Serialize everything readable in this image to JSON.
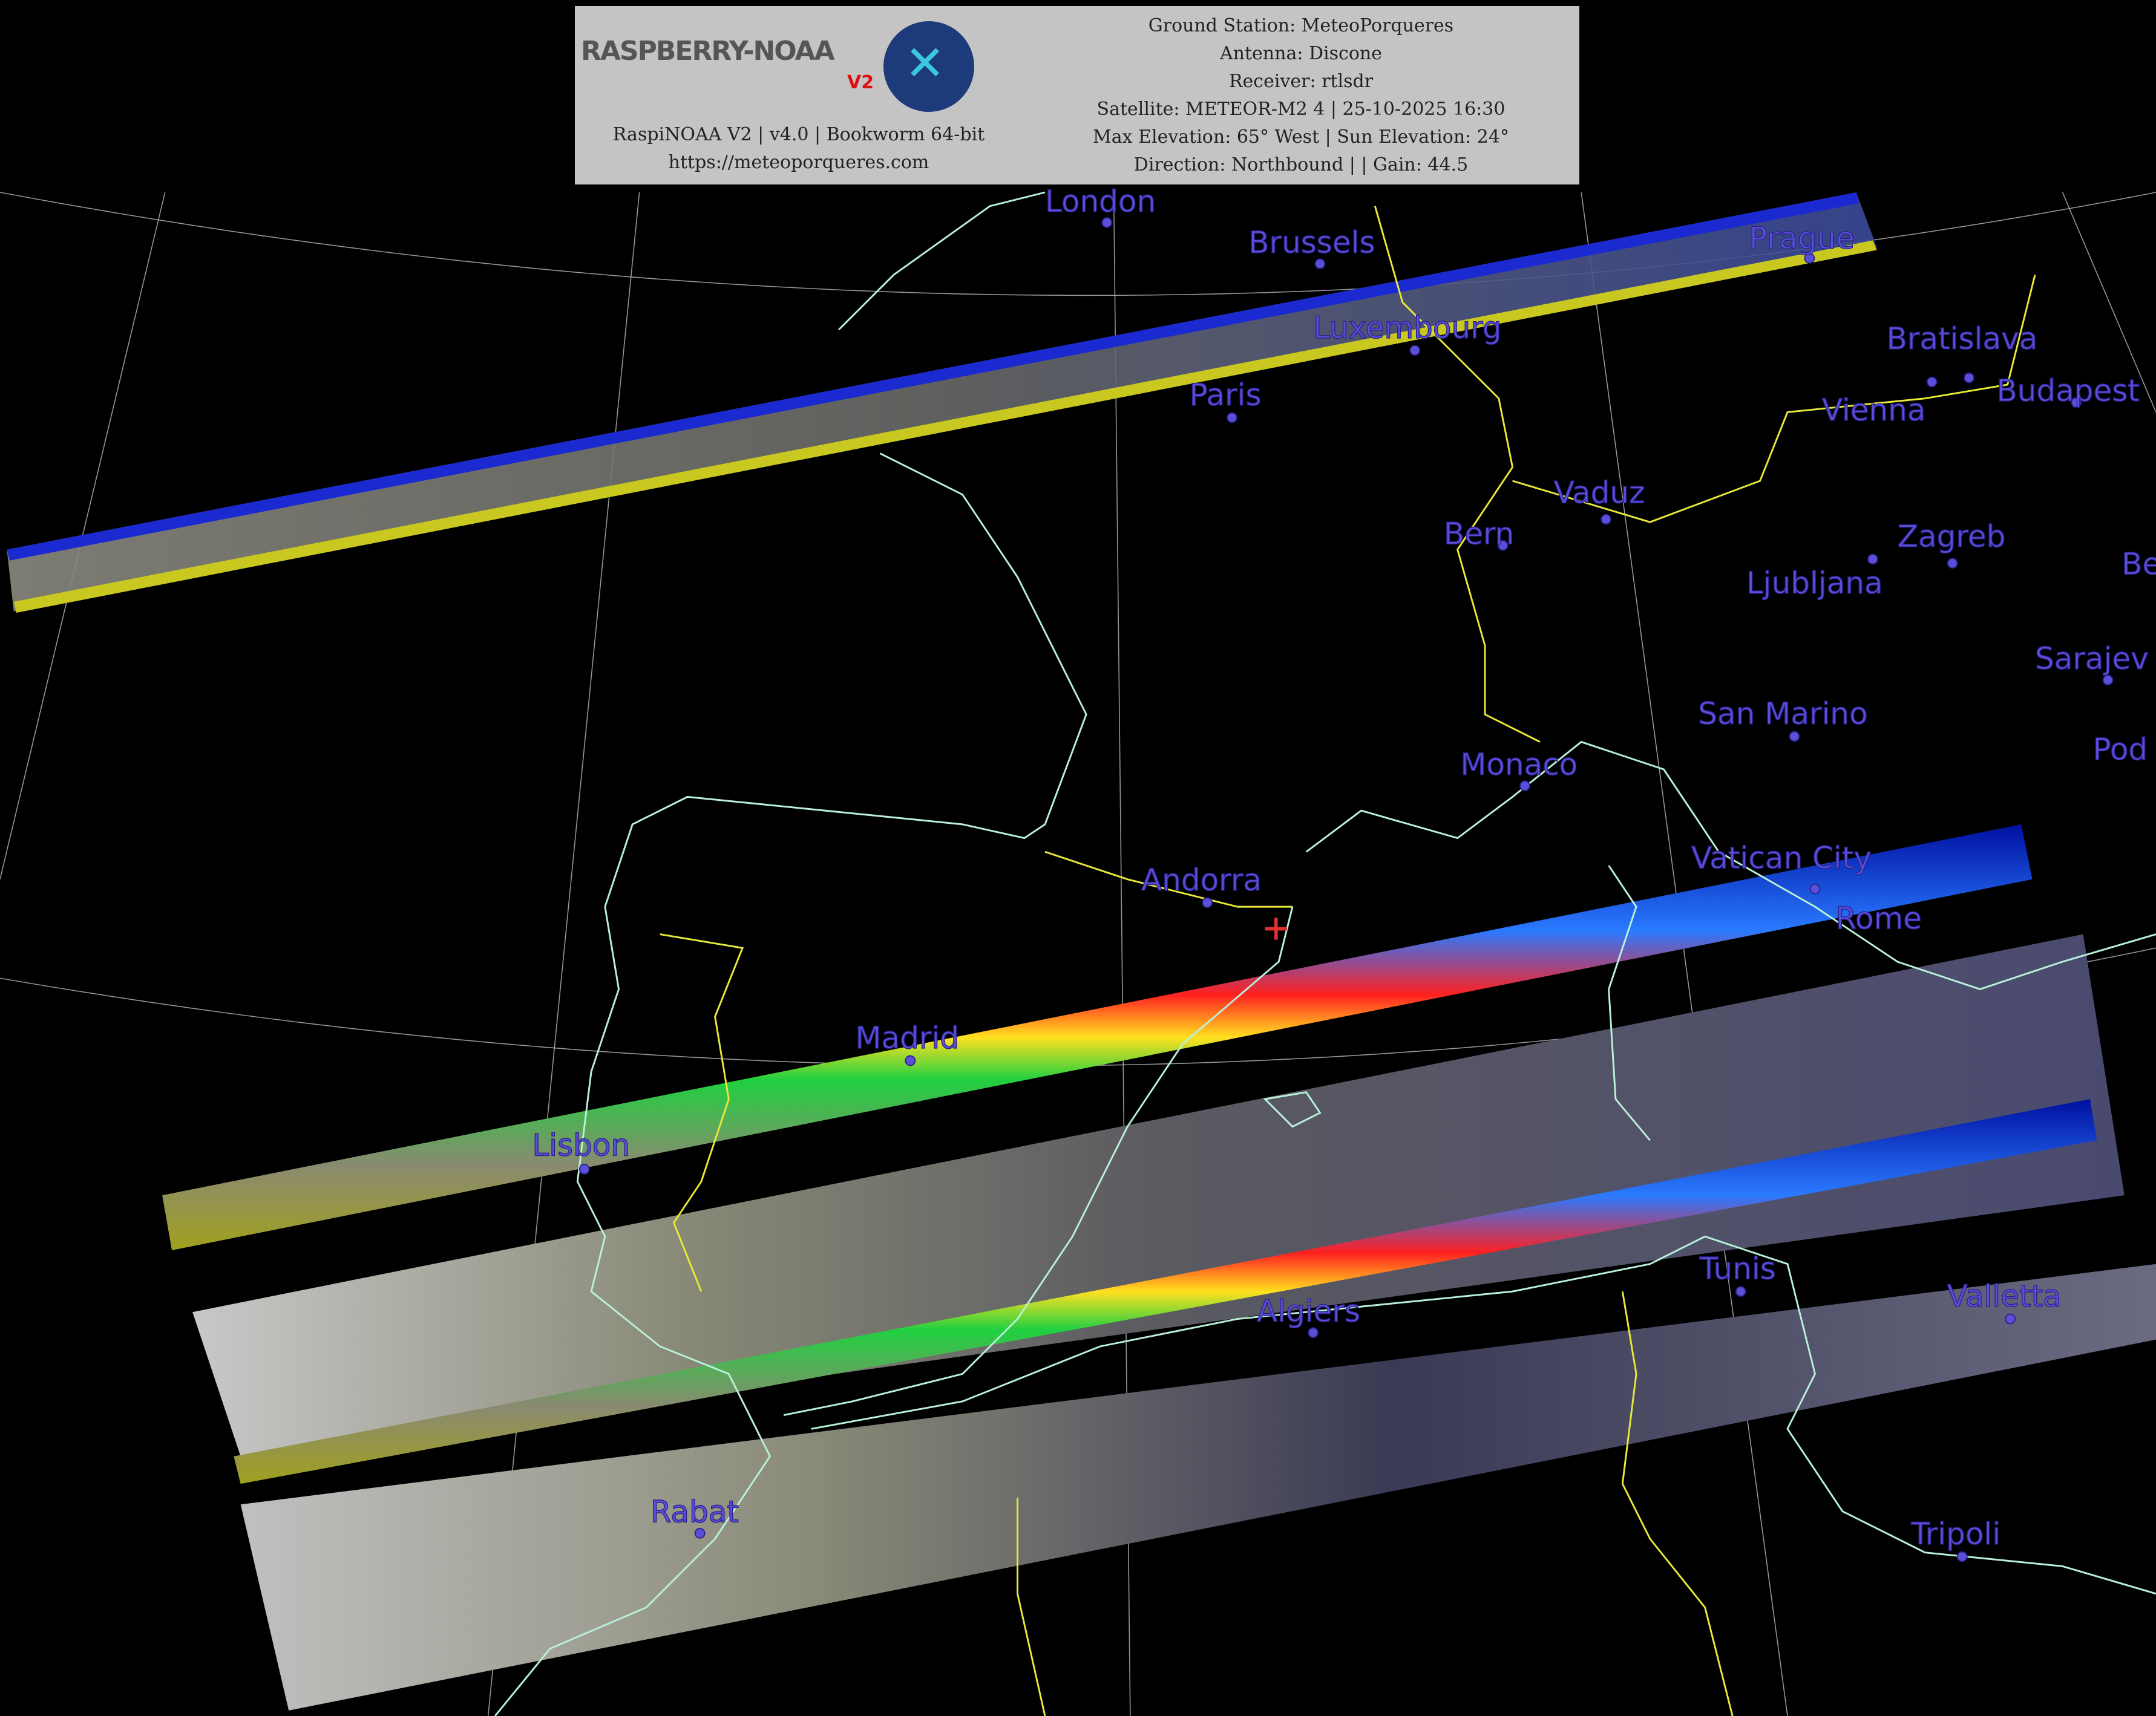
{
  "header": {
    "logo_text": "RASPBERRY-NOAA",
    "logo_badge": "V2",
    "software_line": "RaspiNOAA V2 | v4.0 | Bookworm 64-bit",
    "website": "https://meteoporqueres.com",
    "ground_station": "Ground Station: MeteoPorqueres",
    "antenna": "Antenna: Discone",
    "receiver": "Receiver: rtlsdr",
    "satellite": "Satellite: METEOR-M2 4 | 25-10-2025 16:30",
    "elevation": "Max Elevation: 65° West | Sun Elevation: 24°",
    "direction": "Direction: Northbound | | Gain: 44.5"
  },
  "colors": {
    "city_label": "#5a4fd8",
    "coastline": "#b8f0d8",
    "border": "#e8e83a",
    "station_marker": "#e03030",
    "header_bg": "#c4c4c4"
  },
  "station_marker_icon": "red-cross",
  "cities": [
    {
      "name": "London"
    },
    {
      "name": "Brussels"
    },
    {
      "name": "Prague"
    },
    {
      "name": "Luxembourg"
    },
    {
      "name": "Paris"
    },
    {
      "name": "Vienna"
    },
    {
      "name": "Bratislava"
    },
    {
      "name": "Budapest"
    },
    {
      "name": "Vaduz"
    },
    {
      "name": "Bern"
    },
    {
      "name": "Ljubljana"
    },
    {
      "name": "Zagreb"
    },
    {
      "name": "Be"
    },
    {
      "name": "Sarajev"
    },
    {
      "name": "San Marino"
    },
    {
      "name": "Pod"
    },
    {
      "name": "Monaco"
    },
    {
      "name": "Andorra"
    },
    {
      "name": "Vatican City"
    },
    {
      "name": "Rome"
    },
    {
      "name": "Madrid"
    },
    {
      "name": "Lisbon"
    },
    {
      "name": "Tunis"
    },
    {
      "name": "Algiers"
    },
    {
      "name": "Valletta"
    },
    {
      "name": "Rabat"
    },
    {
      "name": "Tripoli"
    }
  ]
}
